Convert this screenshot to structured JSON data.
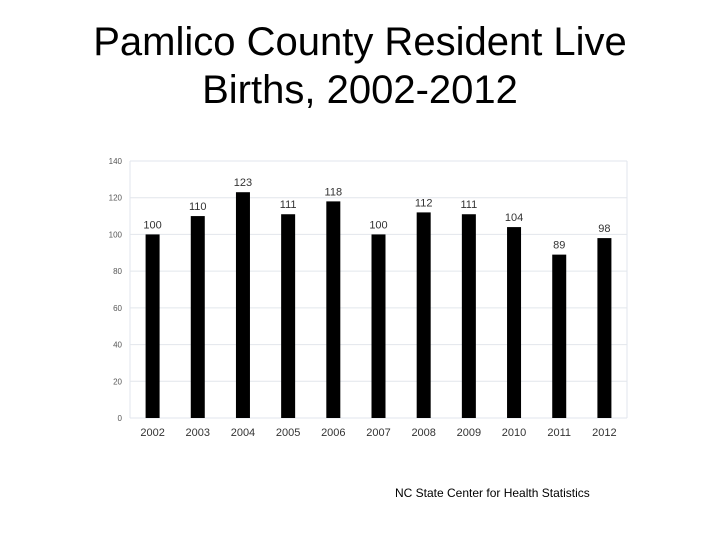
{
  "title_line1": "Pamlico County Resident Live",
  "title_line2": "Births, 2002-2012",
  "source": "NC State Center for Health Statistics",
  "colors": {
    "bar": "#000000",
    "grid": "#e2e6ec",
    "axis_text": "#555555"
  },
  "chart_data": {
    "type": "bar",
    "categories": [
      "2002",
      "2003",
      "2004",
      "2005",
      "2006",
      "2007",
      "2008",
      "2009",
      "2010",
      "2011",
      "2012"
    ],
    "values": [
      100,
      110,
      123,
      111,
      118,
      100,
      112,
      111,
      104,
      89,
      98
    ],
    "yticks": [
      0,
      20,
      40,
      60,
      80,
      100,
      120,
      140
    ],
    "ylim": [
      0,
      140
    ],
    "grid": true,
    "data_labels": true,
    "title": "",
    "xlabel": "",
    "ylabel": ""
  }
}
